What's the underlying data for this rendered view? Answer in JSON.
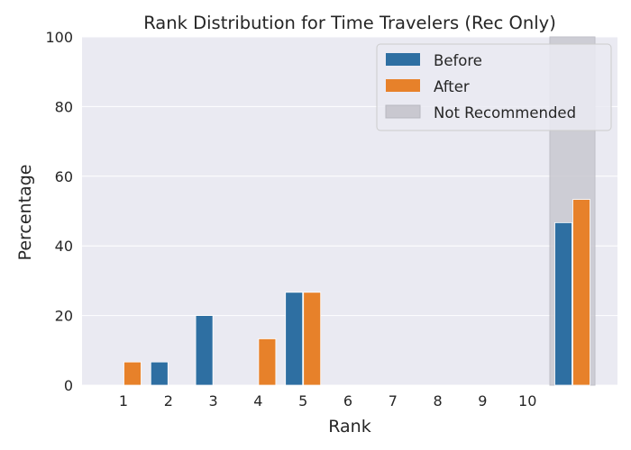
{
  "chart_data": {
    "type": "bar",
    "title": "Rank Distribution for Time Travelers (Rec Only)",
    "xlabel": "Rank",
    "ylabel": "Percentage",
    "ylim": [
      0,
      100
    ],
    "yticks": [
      "0",
      "20",
      "40",
      "60",
      "80",
      "100"
    ],
    "categories": [
      "1",
      "2",
      "3",
      "4",
      "5",
      "6",
      "7",
      "8",
      "9",
      "10",
      ""
    ],
    "series": [
      {
        "name": "Before",
        "color": "#2e6fa2",
        "values": [
          0,
          6.67,
          20,
          0,
          26.67,
          0,
          0,
          0,
          0,
          0,
          46.67
        ]
      },
      {
        "name": "After",
        "color": "#e7812a",
        "values": [
          6.67,
          0,
          0,
          13.33,
          26.67,
          0,
          0,
          0,
          0,
          0,
          53.33
        ]
      }
    ],
    "highlight": {
      "category_index": 10,
      "label": "Not Recommended",
      "color": "#c9c8d0"
    },
    "grid": true,
    "legend": "top-right",
    "background": "#eaeaf2"
  }
}
